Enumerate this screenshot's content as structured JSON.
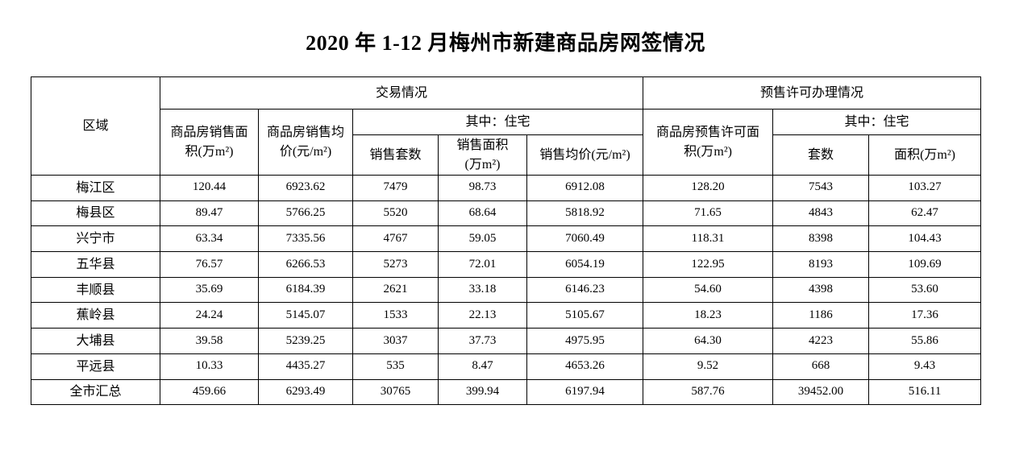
{
  "title": "2020 年 1-12 月梅州市新建商品房网签情况",
  "table": {
    "header": {
      "region": "区域",
      "transaction_group": "交易情况",
      "presale_group": "预售许可办理情况",
      "sales_area": "商品房销售面\n积(万m²)",
      "sales_avg_price": "商品房销售均\n价(元/m²)",
      "residential_sub": "其中：住宅",
      "sold_units": "销售套数",
      "res_sales_area": "销售面积\n(万m²)",
      "res_avg_price": "销售均价(元/m²)",
      "presale_area": "商品房预售许可面\n积(万m²)",
      "presale_residential_sub": "其中：住宅",
      "presale_units": "套数",
      "presale_res_area": "面积(万m²)"
    },
    "rows": [
      {
        "region": "梅江区",
        "values": [
          "120.44",
          "6923.62",
          "7479",
          "98.73",
          "6912.08",
          "128.20",
          "7543",
          "103.27"
        ]
      },
      {
        "region": "梅县区",
        "values": [
          "89.47",
          "5766.25",
          "5520",
          "68.64",
          "5818.92",
          "71.65",
          "4843",
          "62.47"
        ]
      },
      {
        "region": "兴宁市",
        "values": [
          "63.34",
          "7335.56",
          "4767",
          "59.05",
          "7060.49",
          "118.31",
          "8398",
          "104.43"
        ]
      },
      {
        "region": "五华县",
        "values": [
          "76.57",
          "6266.53",
          "5273",
          "72.01",
          "6054.19",
          "122.95",
          "8193",
          "109.69"
        ]
      },
      {
        "region": "丰顺县",
        "values": [
          "35.69",
          "6184.39",
          "2621",
          "33.18",
          "6146.23",
          "54.60",
          "4398",
          "53.60"
        ]
      },
      {
        "region": "蕉岭县",
        "values": [
          "24.24",
          "5145.07",
          "1533",
          "22.13",
          "5105.67",
          "18.23",
          "1186",
          "17.36"
        ]
      },
      {
        "region": "大埔县",
        "values": [
          "39.58",
          "5239.25",
          "3037",
          "37.73",
          "4975.95",
          "64.30",
          "4223",
          "55.86"
        ]
      },
      {
        "region": "平远县",
        "values": [
          "10.33",
          "4435.27",
          "535",
          "8.47",
          "4653.26",
          "9.52",
          "668",
          "9.43"
        ]
      },
      {
        "region": "全市汇总",
        "values": [
          "459.66",
          "6293.49",
          "30765",
          "399.94",
          "6197.94",
          "587.76",
          "39452.00",
          "516.11"
        ]
      }
    ]
  }
}
